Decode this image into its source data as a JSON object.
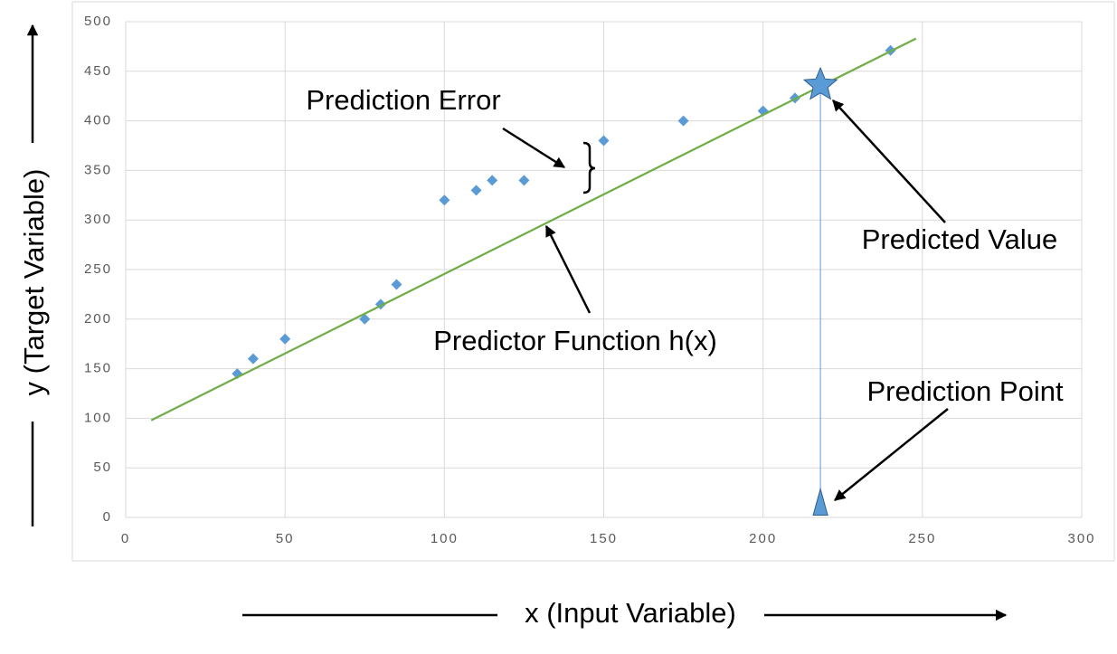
{
  "chart_data": {
    "type": "scatter",
    "x_label": "x (Input Variable)",
    "y_label": "y (Target Variable)",
    "xlim": [
      0,
      300
    ],
    "xticks": [
      0,
      50,
      100,
      150,
      200,
      250,
      300
    ],
    "ylim": [
      0,
      500
    ],
    "yticks": [
      0,
      50,
      100,
      150,
      200,
      250,
      300,
      350,
      400,
      450,
      500
    ],
    "grid": true,
    "series": [
      {
        "x": [
          35,
          40,
          50,
          75,
          80,
          85,
          100,
          110,
          115,
          125,
          150,
          175,
          200,
          210,
          240
        ],
        "values": [
          145,
          160,
          180,
          200,
          215,
          235,
          320,
          330,
          340,
          340,
          380,
          400,
          410,
          423,
          471
        ],
        "color": "#5b9bd5",
        "marker": "diamond"
      },
      {
        "x": [
          8,
          248
        ],
        "values": [
          98,
          483
        ],
        "color": "#70ad47",
        "marker": "line"
      },
      {
        "x": [
          218
        ],
        "values": [
          436
        ],
        "color": "#5b9bd5",
        "marker": "star"
      },
      {
        "x": [
          218
        ],
        "values": [
          15
        ],
        "color": "#5b9bd5",
        "marker": "triangle"
      }
    ],
    "annotations": [
      "Prediction Error",
      "Predictor Function h(x)",
      "Predicted Value",
      "Prediction Point"
    ]
  }
}
